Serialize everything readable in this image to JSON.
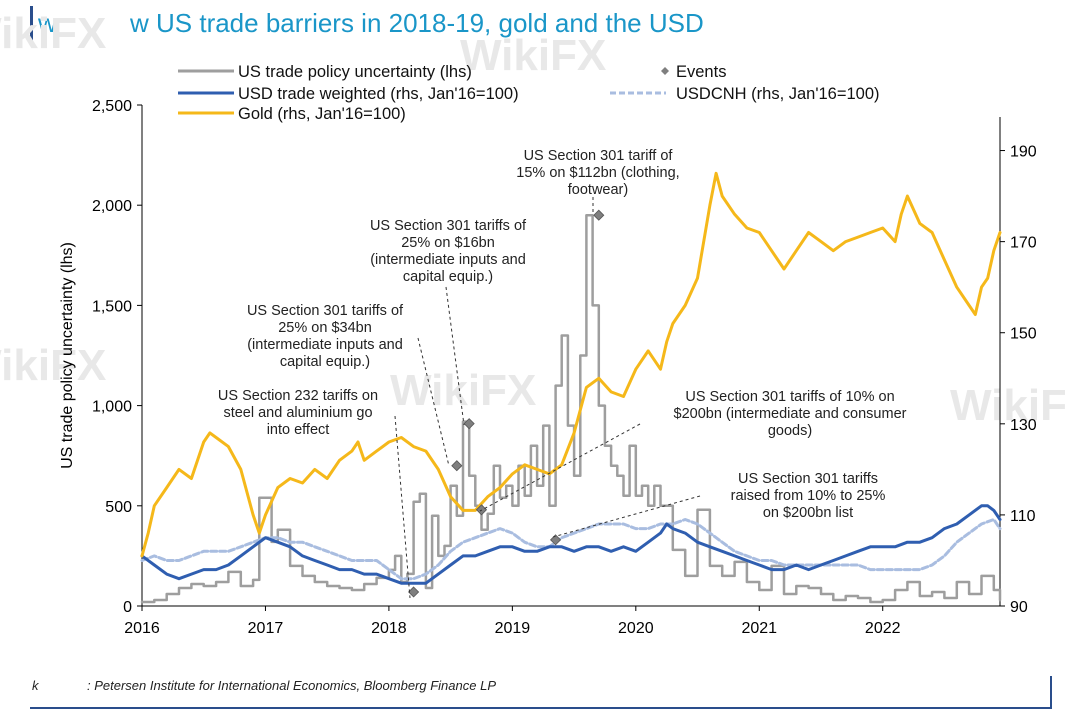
{
  "header": {
    "mark": "w",
    "title": "w US trade barriers in 2018-19, gold and the USD"
  },
  "footer": {
    "mark": "k",
    "source": ": Petersen Institute for International Economics, Bloomberg Finance LP"
  },
  "watermark": {
    "text": "WikiFX"
  },
  "colors": {
    "title": "#1a96c8",
    "uncertainty": "#9e9e9e",
    "usd_tw": "#2f5eb0",
    "usdcnh": "#a9bde0",
    "gold": "#f5b81a",
    "events": "#7f7f7f"
  },
  "chart_data": {
    "type": "line",
    "title": "w US trade barriers in 2018-19, gold and the USD",
    "ylabel_left": "US trade policy uncertainty (lhs)",
    "ylabel_right": "",
    "x_ticks": [
      2016,
      2017,
      2018,
      2019,
      2020,
      2021,
      2022
    ],
    "x_tick_labels": [
      "2016",
      "2017",
      "2018",
      "2019",
      "2020",
      "2021",
      "2022"
    ],
    "xlim": [
      2016.0,
      2022.95
    ],
    "ylim_left": [
      0,
      2500
    ],
    "y_ticks_left": [
      0,
      500,
      1000,
      1500,
      2000,
      2500
    ],
    "y_tick_labels_left": [
      "0",
      "500",
      "1,000",
      "1,500",
      "2,000",
      "2,500"
    ],
    "ylim_right": [
      90,
      200
    ],
    "y_ticks_right": [
      90,
      110,
      130,
      150,
      170,
      190
    ],
    "y_tick_labels_right": [
      "90",
      "110",
      "130",
      "150",
      "170",
      "190"
    ],
    "grid": false,
    "legend_position": "top",
    "legend": [
      {
        "name": "US trade policy uncertainty (lhs)",
        "style": "line",
        "color": "#9e9e9e"
      },
      {
        "name": "Events",
        "style": "marker",
        "color": "#7f7f7f"
      },
      {
        "name": "USD trade weighted (rhs, Jan'16=100)",
        "style": "line",
        "color": "#2f5eb0"
      },
      {
        "name": "USDCNH (rhs, Jan'16=100)",
        "style": "dashed",
        "color": "#a9bde0"
      },
      {
        "name": "Gold (rhs, Jan'16=100)",
        "style": "line",
        "color": "#f5b81a"
      }
    ],
    "series": [
      {
        "name": "US trade policy uncertainty (lhs)",
        "axis": "left",
        "step": true,
        "x": [
          2016.0,
          2016.1,
          2016.2,
          2016.3,
          2016.4,
          2016.5,
          2016.6,
          2016.7,
          2016.8,
          2016.9,
          2016.95,
          2017.05,
          2017.1,
          2017.2,
          2017.3,
          2017.4,
          2017.5,
          2017.6,
          2017.7,
          2017.8,
          2017.9,
          2018.0,
          2018.05,
          2018.1,
          2018.15,
          2018.2,
          2018.25,
          2018.3,
          2018.35,
          2018.4,
          2018.45,
          2018.5,
          2018.55,
          2018.6,
          2018.65,
          2018.7,
          2018.75,
          2018.8,
          2018.85,
          2018.9,
          2018.95,
          2019.0,
          2019.05,
          2019.1,
          2019.15,
          2019.2,
          2019.25,
          2019.3,
          2019.35,
          2019.4,
          2019.45,
          2019.5,
          2019.55,
          2019.6,
          2019.65,
          2019.7,
          2019.75,
          2019.8,
          2019.85,
          2019.9,
          2019.95,
          2020.0,
          2020.05,
          2020.1,
          2020.15,
          2020.2,
          2020.3,
          2020.4,
          2020.5,
          2020.6,
          2020.7,
          2020.8,
          2020.9,
          2021.0,
          2021.1,
          2021.2,
          2021.3,
          2021.4,
          2021.5,
          2021.6,
          2021.7,
          2021.8,
          2021.9,
          2022.0,
          2022.1,
          2022.2,
          2022.3,
          2022.4,
          2022.5,
          2022.6,
          2022.7,
          2022.8,
          2022.9,
          2022.95
        ],
        "values": [
          20,
          30,
          60,
          90,
          110,
          100,
          120,
          170,
          100,
          130,
          540,
          320,
          380,
          200,
          150,
          120,
          100,
          90,
          80,
          110,
          140,
          180,
          250,
          120,
          160,
          520,
          560,
          90,
          450,
          250,
          300,
          600,
          450,
          920,
          650,
          500,
          380,
          460,
          700,
          540,
          600,
          500,
          700,
          550,
          800,
          600,
          900,
          500,
          1100,
          1350,
          900,
          650,
          1250,
          1950,
          1500,
          1000,
          800,
          700,
          650,
          550,
          800,
          550,
          600,
          500,
          600,
          500,
          280,
          150,
          480,
          200,
          150,
          220,
          120,
          80,
          200,
          60,
          100,
          90,
          60,
          30,
          50,
          40,
          20,
          30,
          80,
          120,
          50,
          70,
          40,
          120,
          60,
          150,
          80,
          30
        ]
      },
      {
        "name": "USD trade weighted (rhs, Jan'16=100)",
        "axis": "right",
        "x": [
          2016.0,
          2016.1,
          2016.2,
          2016.3,
          2016.4,
          2016.5,
          2016.6,
          2016.7,
          2016.8,
          2016.9,
          2017.0,
          2017.1,
          2017.2,
          2017.3,
          2017.4,
          2017.5,
          2017.6,
          2017.7,
          2017.8,
          2017.9,
          2018.0,
          2018.1,
          2018.2,
          2018.3,
          2018.4,
          2018.5,
          2018.6,
          2018.7,
          2018.8,
          2018.9,
          2019.0,
          2019.1,
          2019.2,
          2019.3,
          2019.4,
          2019.5,
          2019.6,
          2019.7,
          2019.8,
          2019.9,
          2020.0,
          2020.1,
          2020.2,
          2020.25,
          2020.3,
          2020.4,
          2020.5,
          2020.6,
          2020.7,
          2020.8,
          2020.9,
          2021.0,
          2021.1,
          2021.2,
          2021.3,
          2021.4,
          2021.5,
          2021.6,
          2021.7,
          2021.8,
          2021.9,
          2022.0,
          2022.1,
          2022.2,
          2022.3,
          2022.4,
          2022.5,
          2022.6,
          2022.7,
          2022.8,
          2022.85,
          2022.9,
          2022.95
        ],
        "values": [
          101,
          99,
          97,
          96,
          97,
          98,
          98,
          99,
          101,
          103,
          105,
          104,
          103,
          101,
          100,
          99,
          98,
          98,
          97,
          97,
          96,
          95,
          95,
          95,
          97,
          99,
          101,
          101,
          102,
          103,
          103,
          102,
          102,
          103,
          103,
          102,
          103,
          103,
          102,
          103,
          102,
          104,
          106,
          108,
          107,
          106,
          104,
          103,
          102,
          101,
          100,
          99,
          98,
          98,
          99,
          98,
          99,
          100,
          101,
          102,
          103,
          103,
          103,
          104,
          104,
          105,
          107,
          108,
          110,
          112,
          112,
          111,
          109
        ]
      },
      {
        "name": "USDCNH (rhs, Jan'16=100)",
        "axis": "right",
        "x": [
          2016.0,
          2016.1,
          2016.2,
          2016.3,
          2016.4,
          2016.5,
          2016.6,
          2016.7,
          2016.8,
          2016.9,
          2017.0,
          2017.1,
          2017.2,
          2017.3,
          2017.4,
          2017.5,
          2017.6,
          2017.7,
          2017.8,
          2017.9,
          2018.0,
          2018.1,
          2018.2,
          2018.3,
          2018.4,
          2018.5,
          2018.6,
          2018.7,
          2018.8,
          2018.9,
          2019.0,
          2019.1,
          2019.2,
          2019.3,
          2019.4,
          2019.5,
          2019.6,
          2019.7,
          2019.8,
          2019.9,
          2020.0,
          2020.1,
          2020.2,
          2020.3,
          2020.4,
          2020.5,
          2020.6,
          2020.7,
          2020.8,
          2020.9,
          2021.0,
          2021.1,
          2021.2,
          2021.3,
          2021.4,
          2021.5,
          2021.6,
          2021.7,
          2021.8,
          2021.9,
          2022.0,
          2022.1,
          2022.2,
          2022.3,
          2022.4,
          2022.5,
          2022.6,
          2022.7,
          2022.8,
          2022.9,
          2022.95
        ],
        "values": [
          100,
          101,
          100,
          100,
          101,
          102,
          102,
          102,
          103,
          104,
          105,
          105,
          104,
          104,
          103,
          102,
          101,
          100,
          100,
          100,
          98,
          96,
          96,
          97,
          99,
          102,
          104,
          105,
          106,
          107,
          106,
          104,
          103,
          103,
          105,
          106,
          107,
          108,
          108,
          108,
          107,
          107,
          108,
          108,
          109,
          108,
          106,
          104,
          102,
          101,
          100,
          100,
          99,
          99,
          99,
          99,
          99,
          99,
          99,
          98,
          98,
          98,
          98,
          98,
          99,
          101,
          104,
          106,
          108,
          109,
          107
        ]
      },
      {
        "name": "Gold (rhs, Jan'16=100)",
        "axis": "right",
        "x": [
          2016.0,
          2016.05,
          2016.1,
          2016.2,
          2016.3,
          2016.4,
          2016.5,
          2016.55,
          2016.6,
          2016.7,
          2016.8,
          2016.9,
          2016.95,
          2017.0,
          2017.1,
          2017.2,
          2017.3,
          2017.4,
          2017.5,
          2017.6,
          2017.7,
          2017.75,
          2017.8,
          2017.9,
          2018.0,
          2018.1,
          2018.2,
          2018.3,
          2018.4,
          2018.5,
          2018.6,
          2018.7,
          2018.8,
          2018.9,
          2019.0,
          2019.1,
          2019.2,
          2019.3,
          2019.4,
          2019.5,
          2019.6,
          2019.7,
          2019.8,
          2019.9,
          2020.0,
          2020.1,
          2020.2,
          2020.25,
          2020.3,
          2020.4,
          2020.5,
          2020.6,
          2020.65,
          2020.7,
          2020.8,
          2020.9,
          2021.0,
          2021.1,
          2021.2,
          2021.3,
          2021.4,
          2021.5,
          2021.6,
          2021.7,
          2021.8,
          2021.9,
          2022.0,
          2022.1,
          2022.15,
          2022.2,
          2022.3,
          2022.4,
          2022.5,
          2022.6,
          2022.7,
          2022.75,
          2022.8,
          2022.85,
          2022.9,
          2022.95
        ],
        "values": [
          101,
          106,
          112,
          116,
          120,
          118,
          126,
          128,
          127,
          125,
          120,
          110,
          106,
          110,
          116,
          118,
          117,
          120,
          118,
          122,
          124,
          126,
          122,
          124,
          126,
          127,
          125,
          124,
          120,
          114,
          111,
          111,
          114,
          116,
          119,
          121,
          120,
          119,
          121,
          128,
          138,
          140,
          137,
          136,
          142,
          146,
          142,
          148,
          152,
          156,
          162,
          178,
          185,
          180,
          176,
          173,
          172,
          168,
          164,
          168,
          172,
          170,
          168,
          170,
          171,
          172,
          173,
          170,
          176,
          180,
          174,
          172,
          166,
          160,
          156,
          154,
          160,
          162,
          168,
          172
        ]
      }
    ],
    "events": {
      "x": [
        2018.2,
        2018.55,
        2018.65,
        2018.75,
        2019.35,
        2019.7
      ],
      "y": [
        70,
        700,
        910,
        480,
        330,
        1950
      ]
    },
    "annotations": [
      {
        "text": [
          "US Section 232 tariffs on",
          "steel and aluminium go",
          "into effect"
        ],
        "event_index": 0
      },
      {
        "text": [
          "US Section 301 tariffs of",
          "25% on $34bn",
          "(intermediate inputs and",
          "capital equip.)"
        ],
        "event_index": 1
      },
      {
        "text": [
          "US Section 301 tariffs of",
          "25% on $16bn",
          "(intermediate inputs and",
          "capital equip.)"
        ],
        "event_index": 2
      },
      {
        "text": [
          "US Section 301 tariffs of 10% on",
          "$200bn (intermediate and consumer",
          "goods)"
        ],
        "event_index": 3
      },
      {
        "text": [
          "US Section 301 tariffs",
          "raised from 10% to 25%",
          "on $200bn list"
        ],
        "event_index": 4
      },
      {
        "text": [
          "US Section 301 tariff of",
          "15% on $112bn (clothing,",
          "footwear)"
        ],
        "event_index": 5
      }
    ]
  }
}
